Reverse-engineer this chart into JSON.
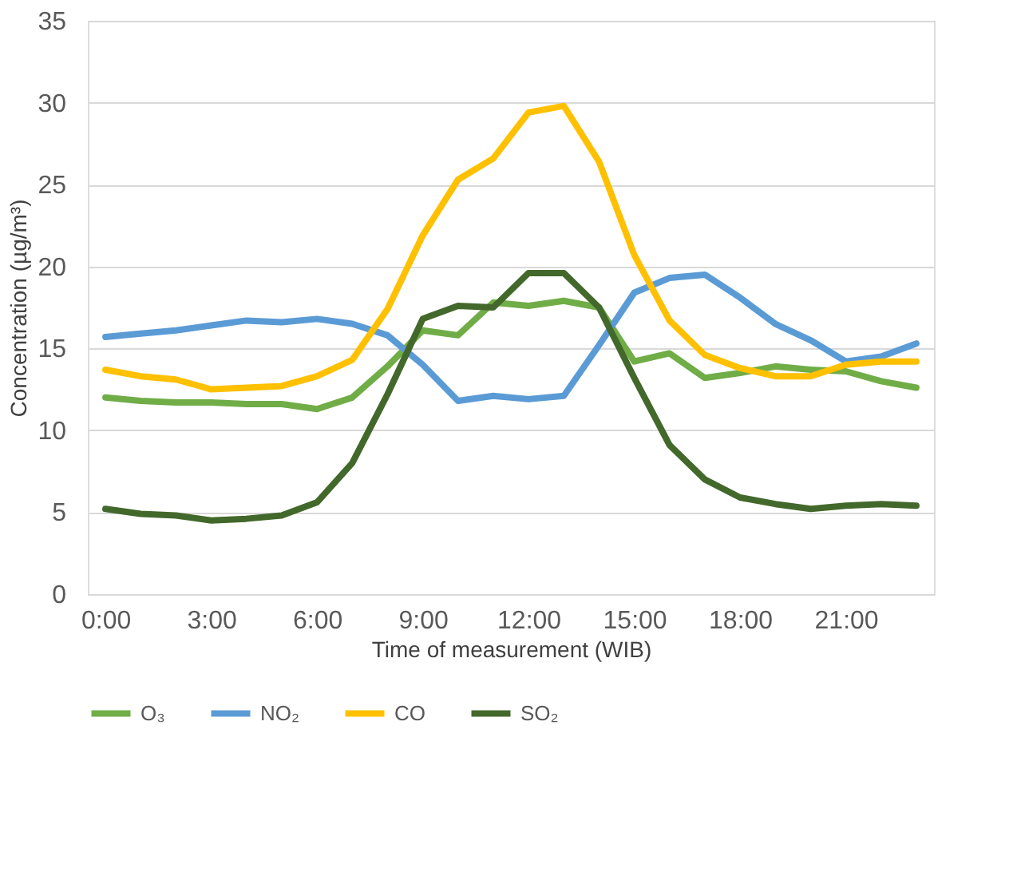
{
  "chart_data": {
    "type": "line",
    "xlabel": "Time of measurement (WIB)",
    "ylabel": "Concentration  (µg/m³)",
    "categories": [
      "0:00",
      null,
      null,
      "3:00",
      null,
      null,
      "6:00",
      null,
      null,
      "9:00",
      null,
      null,
      "12:00",
      null,
      null,
      "15:00",
      null,
      null,
      "18:00",
      null,
      null,
      "21:00",
      null,
      null
    ],
    "series": [
      {
        "name": "O₃",
        "color": "#70ad47",
        "values": [
          12.0,
          11.8,
          11.7,
          11.7,
          11.6,
          11.6,
          11.3,
          12.0,
          13.9,
          16.1,
          15.8,
          17.8,
          17.6,
          17.9,
          17.5,
          14.2,
          14.7,
          13.2,
          13.5,
          13.9,
          13.7,
          13.6,
          13.0,
          12.6
        ]
      },
      {
        "name": "NO₂",
        "color": "#5b9bd5",
        "values": [
          15.7,
          15.9,
          16.1,
          16.4,
          16.7,
          16.6,
          16.8,
          16.5,
          15.8,
          14.0,
          11.8,
          12.1,
          11.9,
          12.1,
          15.2,
          18.4,
          19.3,
          19.5,
          18.1,
          16.5,
          15.5,
          14.2,
          14.5,
          15.3
        ]
      },
      {
        "name": "CO",
        "color": "#ffc000",
        "values": [
          13.7,
          13.3,
          13.1,
          12.5,
          12.6,
          12.7,
          13.3,
          14.3,
          17.4,
          21.9,
          25.3,
          26.6,
          29.4,
          29.8,
          26.4,
          20.7,
          16.7,
          14.6,
          13.8,
          13.3,
          13.3,
          14.0,
          14.2,
          14.2
        ]
      },
      {
        "name": "SO₂",
        "color": "#43682b",
        "values": [
          5.2,
          4.9,
          4.8,
          4.5,
          4.6,
          4.8,
          5.6,
          8.0,
          12.2,
          16.8,
          17.6,
          17.5,
          19.6,
          19.6,
          17.5,
          13.2,
          9.1,
          7.0,
          5.9,
          5.5,
          5.2,
          5.4,
          5.5,
          5.4
        ]
      }
    ],
    "ylim": [
      0,
      35
    ],
    "yticks": [
      0,
      5,
      10,
      15,
      20,
      25,
      30,
      35
    ],
    "grid": "y",
    "legend": "bottom",
    "marker": "none",
    "line_style": "solid"
  }
}
